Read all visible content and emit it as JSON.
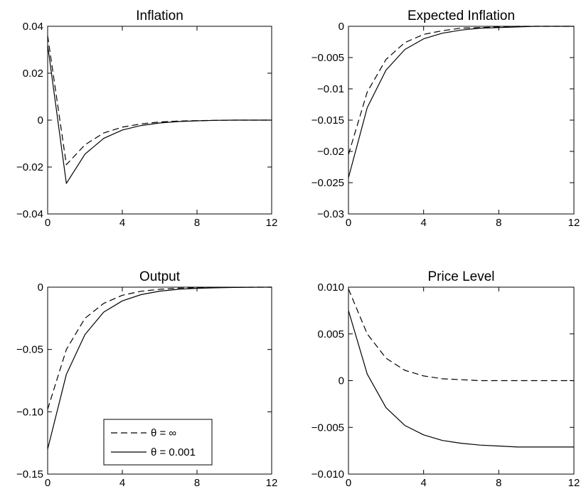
{
  "chart_data": [
    {
      "type": "line",
      "title": "Inflation",
      "xlabel": "",
      "ylabel": "",
      "xlim": [
        0,
        12
      ],
      "ylim": [
        -0.04,
        0.04
      ],
      "xticks": [
        0,
        4,
        8,
        12
      ],
      "xtick_labels": [
        "0",
        "4",
        "8",
        "12"
      ],
      "yticks": [
        0.04,
        0.02,
        0,
        -0.02,
        -0.04
      ],
      "ytick_labels": [
        "0.04",
        "0.02",
        "0",
        "−0.02",
        "−0.04"
      ],
      "grid": false,
      "x": [
        0,
        1,
        2,
        3,
        4,
        5,
        6,
        7,
        8,
        9,
        10,
        11,
        12
      ],
      "series": [
        {
          "values": [
            0.036,
            -0.019,
            -0.0105,
            -0.0055,
            -0.003,
            -0.0016,
            -0.0008,
            -0.0004,
            -0.0002,
            -0.0001,
            0,
            0,
            0
          ],
          "color": "#000000",
          "dash": "dashed"
        },
        {
          "values": [
            0.032,
            -0.027,
            -0.0145,
            -0.0078,
            -0.0042,
            -0.0023,
            -0.0012,
            -0.0006,
            -0.0003,
            -0.0001,
            0,
            0,
            0
          ],
          "color": "#000000",
          "dash": "solid"
        }
      ]
    },
    {
      "type": "line",
      "title": "Expected Inflation",
      "xlabel": "",
      "ylabel": "",
      "xlim": [
        0,
        12
      ],
      "ylim": [
        -0.03,
        0
      ],
      "xticks": [
        0,
        4,
        8,
        12
      ],
      "xtick_labels": [
        "0",
        "4",
        "8",
        "12"
      ],
      "yticks": [
        0,
        -0.005,
        -0.01,
        -0.015,
        -0.02,
        -0.025,
        -0.03
      ],
      "ytick_labels": [
        "0",
        "−0.005",
        "−0.01",
        "−0.015",
        "−0.02",
        "−0.025",
        "−0.03"
      ],
      "grid": false,
      "x": [
        0,
        1,
        2,
        3,
        4,
        5,
        6,
        7,
        8,
        9,
        10,
        11,
        12
      ],
      "series": [
        {
          "values": [
            -0.0205,
            -0.0105,
            -0.0053,
            -0.0026,
            -0.0013,
            -0.0007,
            -0.0003,
            -0.0002,
            -0.0001,
            0,
            0,
            0,
            0
          ],
          "color": "#000000",
          "dash": "dashed"
        },
        {
          "values": [
            -0.0242,
            -0.013,
            -0.007,
            -0.0037,
            -0.002,
            -0.0011,
            -0.0006,
            -0.0003,
            -0.0002,
            -0.0001,
            0,
            0,
            0
          ],
          "color": "#000000",
          "dash": "solid"
        }
      ]
    },
    {
      "type": "line",
      "title": "Output",
      "xlabel": "",
      "ylabel": "",
      "xlim": [
        0,
        12
      ],
      "ylim": [
        -0.15,
        0
      ],
      "xticks": [
        0,
        4,
        8,
        12
      ],
      "xtick_labels": [
        "0",
        "4",
        "8",
        "12"
      ],
      "yticks": [
        0,
        -0.05,
        -0.1,
        -0.15
      ],
      "ytick_labels": [
        "0",
        "−0.05",
        "−0.10",
        "−0.15"
      ],
      "grid": false,
      "legend": {
        "position": "lower-center",
        "entries": [
          {
            "label": "θ = ∞",
            "dash": "dashed"
          },
          {
            "label": "θ = 0.001",
            "dash": "solid"
          }
        ]
      },
      "x": [
        0,
        1,
        2,
        3,
        4,
        5,
        6,
        7,
        8,
        9,
        10,
        11,
        12
      ],
      "series": [
        {
          "values": [
            -0.098,
            -0.05,
            -0.025,
            -0.013,
            -0.0065,
            -0.0033,
            -0.0017,
            -0.0008,
            -0.0004,
            -0.0002,
            -0.0001,
            0,
            0
          ],
          "color": "#000000",
          "dash": "dashed"
        },
        {
          "values": [
            -0.13,
            -0.07,
            -0.038,
            -0.02,
            -0.011,
            -0.006,
            -0.0032,
            -0.0017,
            -0.0009,
            -0.0005,
            -0.0002,
            -0.0001,
            0
          ],
          "color": "#000000",
          "dash": "solid"
        }
      ]
    },
    {
      "type": "line",
      "title": "Price Level",
      "xlabel": "",
      "ylabel": "",
      "xlim": [
        0,
        12
      ],
      "ylim": [
        -0.01,
        0.01
      ],
      "xticks": [
        0,
        4,
        8,
        12
      ],
      "xtick_labels": [
        "0",
        "4",
        "8",
        "12"
      ],
      "yticks": [
        0.01,
        0.005,
        0,
        -0.005,
        -0.01
      ],
      "ytick_labels": [
        "0.010",
        "0.005",
        "0",
        "−0.005",
        "−0.010"
      ],
      "grid": false,
      "x": [
        0,
        1,
        2,
        3,
        4,
        5,
        6,
        7,
        8,
        9,
        10,
        11,
        12
      ],
      "series": [
        {
          "values": [
            0.0098,
            0.005,
            0.0024,
            0.0011,
            0.0005,
            0.0002,
            0.0001,
            0,
            0,
            0,
            0,
            0,
            0
          ],
          "color": "#000000",
          "dash": "dashed"
        },
        {
          "values": [
            0.0075,
            0.0007,
            -0.0029,
            -0.0048,
            -0.0058,
            -0.0064,
            -0.0067,
            -0.0069,
            -0.007,
            -0.0071,
            -0.0071,
            -0.0071,
            -0.0071
          ],
          "color": "#000000",
          "dash": "solid"
        }
      ]
    }
  ]
}
